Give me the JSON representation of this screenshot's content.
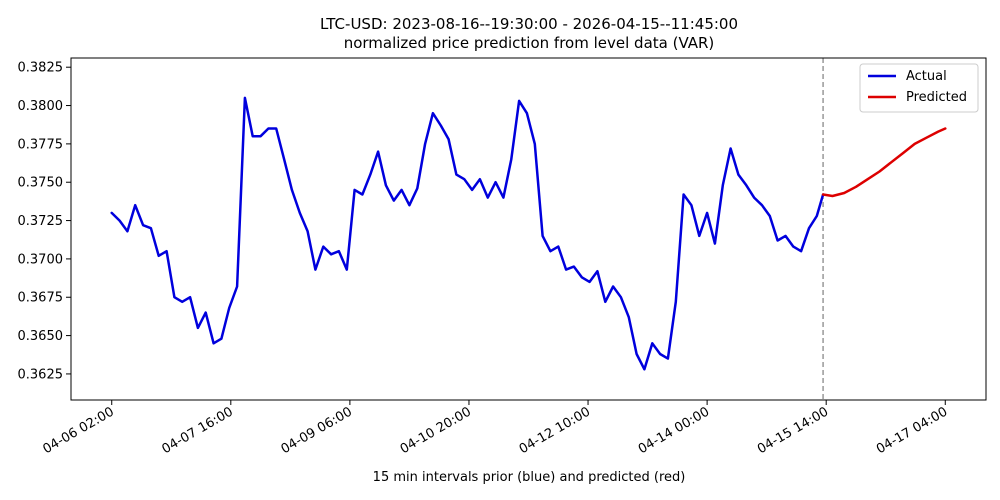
{
  "chart_data": {
    "type": "line",
    "title": "LTC-USD: 2023-08-16--19:30:00 - 2026-04-15--11:45:00",
    "subtitle": "normalized price prediction from level data (VAR)",
    "xlabel": "15 min intervals prior (blue) and predicted (red)",
    "ylabel": "",
    "x_ticks": [
      "04-06 02:00",
      "04-07 16:00",
      "04-09 06:00",
      "04-10 20:00",
      "04-12 10:00",
      "04-14 00:00",
      "04-15 14:00",
      "04-17 04:00"
    ],
    "x_tick_positions": [
      0,
      152,
      304,
      456,
      608,
      760,
      912,
      1064
    ],
    "xlim": [
      -52,
      1116
    ],
    "y_ticks": [
      0.3625,
      0.365,
      0.3675,
      0.37,
      0.3725,
      0.375,
      0.3775,
      0.38,
      0.3825
    ],
    "ylim": [
      0.3608,
      0.3831
    ],
    "vline_x": 908,
    "legend_position": "top-right",
    "grid": false,
    "series": [
      {
        "name": "Actual",
        "color": "#0000dd",
        "x": [
          0,
          10,
          20,
          30,
          40,
          50,
          60,
          70,
          80,
          90,
          100,
          110,
          120,
          130,
          140,
          150,
          160,
          170,
          180,
          190,
          200,
          210,
          220,
          230,
          240,
          250,
          260,
          270,
          280,
          290,
          300,
          310,
          320,
          330,
          340,
          350,
          360,
          370,
          380,
          390,
          400,
          410,
          420,
          430,
          440,
          450,
          460,
          470,
          480,
          490,
          500,
          510,
          520,
          530,
          540,
          550,
          560,
          570,
          580,
          590,
          600,
          610,
          620,
          630,
          640,
          650,
          660,
          670,
          680,
          690,
          700,
          710,
          720,
          730,
          740,
          750,
          760,
          770,
          780,
          790,
          800,
          810,
          820,
          830,
          840,
          850,
          860,
          870,
          880,
          890,
          900,
          908
        ],
        "y": [
          0.373,
          0.3725,
          0.3718,
          0.3735,
          0.3722,
          0.372,
          0.3702,
          0.3705,
          0.3675,
          0.3672,
          0.3675,
          0.3655,
          0.3665,
          0.3645,
          0.3648,
          0.3668,
          0.3682,
          0.3805,
          0.378,
          0.378,
          0.3785,
          0.3785,
          0.3765,
          0.3745,
          0.373,
          0.3718,
          0.3693,
          0.3708,
          0.3703,
          0.3705,
          0.3693,
          0.3745,
          0.3742,
          0.3755,
          0.377,
          0.3748,
          0.3738,
          0.3745,
          0.3735,
          0.3746,
          0.3775,
          0.3795,
          0.3787,
          0.3778,
          0.3755,
          0.3752,
          0.3745,
          0.3752,
          0.374,
          0.375,
          0.374,
          0.3765,
          0.3803,
          0.3795,
          0.3775,
          0.3715,
          0.3705,
          0.3708,
          0.3693,
          0.3695,
          0.3688,
          0.3685,
          0.3692,
          0.3672,
          0.3682,
          0.3675,
          0.3662,
          0.3638,
          0.3628,
          0.3645,
          0.3638,
          0.3635,
          0.3672,
          0.3742,
          0.3735,
          0.3715,
          0.373,
          0.371,
          0.3748,
          0.3772,
          0.3755,
          0.3748,
          0.374,
          0.3735,
          0.3728,
          0.3712,
          0.3715,
          0.3708,
          0.3705,
          0.372,
          0.3728,
          0.3742
        ]
      },
      {
        "name": "Predicted",
        "color": "#dd0000",
        "x": [
          908,
          920,
          935,
          950,
          965,
          980,
          995,
          1010,
          1025,
          1040,
          1055,
          1064
        ],
        "y": [
          0.3742,
          0.3741,
          0.3743,
          0.3747,
          0.3752,
          0.3757,
          0.3763,
          0.3769,
          0.3775,
          0.3779,
          0.3783,
          0.3785
        ]
      }
    ]
  }
}
